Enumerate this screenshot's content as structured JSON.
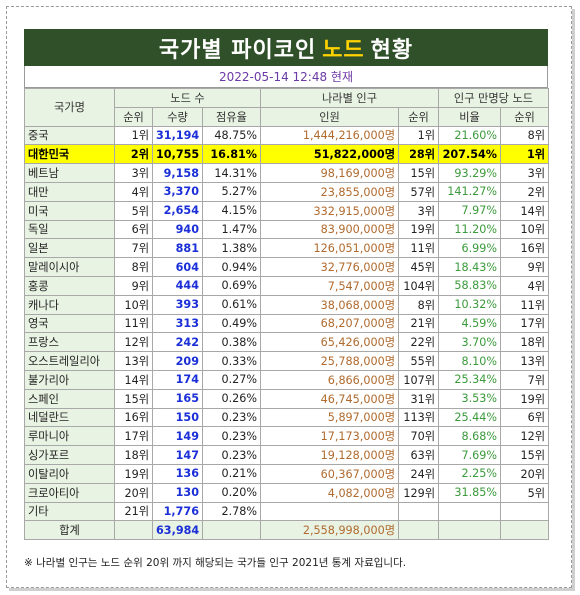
{
  "title": {
    "part1": "국가별 파이코인",
    "highlight": "노드",
    "part2": "현황"
  },
  "date_text": "2022-05-14 12:48 현재",
  "headers": {
    "country": "국가명",
    "nodes_group": "노드 수",
    "rank": "순위",
    "count": "수량",
    "share": "점유율",
    "pop_group": "나라별 인구",
    "population": "인원",
    "pop_rank": "순위",
    "per_group": "인구 만명당 노드",
    "ratio": "비율",
    "ratio_rank": "순위"
  },
  "rows": [
    {
      "country": "중국",
      "rank": "1위",
      "count": "31,194",
      "share": "48.75%",
      "population": "1,444,216,000명",
      "pop_rank": "1위",
      "ratio": "21.60%",
      "ratio_rank": "8위"
    },
    {
      "country": "대한민국",
      "rank": "2위",
      "count": "10,755",
      "share": "16.81%",
      "population": "51,822,000명",
      "pop_rank": "28위",
      "ratio": "207.54%",
      "ratio_rank": "1위",
      "highlight": true
    },
    {
      "country": "베트남",
      "rank": "3위",
      "count": "9,158",
      "share": "14.31%",
      "population": "98,169,000명",
      "pop_rank": "15위",
      "ratio": "93.29%",
      "ratio_rank": "3위"
    },
    {
      "country": "대만",
      "rank": "4위",
      "count": "3,370",
      "share": "5.27%",
      "population": "23,855,000명",
      "pop_rank": "57위",
      "ratio": "141.27%",
      "ratio_rank": "2위"
    },
    {
      "country": "미국",
      "rank": "5위",
      "count": "2,654",
      "share": "4.15%",
      "population": "332,915,000명",
      "pop_rank": "3위",
      "ratio": "7.97%",
      "ratio_rank": "14위"
    },
    {
      "country": "독일",
      "rank": "6위",
      "count": "940",
      "share": "1.47%",
      "population": "83,900,000명",
      "pop_rank": "19위",
      "ratio": "11.20%",
      "ratio_rank": "10위"
    },
    {
      "country": "일본",
      "rank": "7위",
      "count": "881",
      "share": "1.38%",
      "population": "126,051,000명",
      "pop_rank": "11위",
      "ratio": "6.99%",
      "ratio_rank": "16위"
    },
    {
      "country": "말레이시아",
      "rank": "8위",
      "count": "604",
      "share": "0.94%",
      "population": "32,776,000명",
      "pop_rank": "45위",
      "ratio": "18.43%",
      "ratio_rank": "9위"
    },
    {
      "country": "홍콩",
      "rank": "9위",
      "count": "444",
      "share": "0.69%",
      "population": "7,547,000명",
      "pop_rank": "104위",
      "ratio": "58.83%",
      "ratio_rank": "4위"
    },
    {
      "country": "캐나다",
      "rank": "10위",
      "count": "393",
      "share": "0.61%",
      "population": "38,068,000명",
      "pop_rank": "8위",
      "ratio": "10.32%",
      "ratio_rank": "11위"
    },
    {
      "country": "영국",
      "rank": "11위",
      "count": "313",
      "share": "0.49%",
      "population": "68,207,000명",
      "pop_rank": "21위",
      "ratio": "4.59%",
      "ratio_rank": "17위"
    },
    {
      "country": "프랑스",
      "rank": "12위",
      "count": "242",
      "share": "0.38%",
      "population": "65,426,000명",
      "pop_rank": "22위",
      "ratio": "3.70%",
      "ratio_rank": "18위"
    },
    {
      "country": "오스트레일리아",
      "rank": "13위",
      "count": "209",
      "share": "0.33%",
      "population": "25,788,000명",
      "pop_rank": "55위",
      "ratio": "8.10%",
      "ratio_rank": "13위"
    },
    {
      "country": "불가리아",
      "rank": "14위",
      "count": "174",
      "share": "0.27%",
      "population": "6,866,000명",
      "pop_rank": "107위",
      "ratio": "25.34%",
      "ratio_rank": "7위"
    },
    {
      "country": "스페인",
      "rank": "15위",
      "count": "165",
      "share": "0.26%",
      "population": "46,745,000명",
      "pop_rank": "31위",
      "ratio": "3.53%",
      "ratio_rank": "19위"
    },
    {
      "country": "네덜란드",
      "rank": "16위",
      "count": "150",
      "share": "0.23%",
      "population": "5,897,000명",
      "pop_rank": "113위",
      "ratio": "25.44%",
      "ratio_rank": "6위"
    },
    {
      "country": "루마니아",
      "rank": "17위",
      "count": "149",
      "share": "0.23%",
      "population": "17,173,000명",
      "pop_rank": "70위",
      "ratio": "8.68%",
      "ratio_rank": "12위"
    },
    {
      "country": "싱가포르",
      "rank": "18위",
      "count": "147",
      "share": "0.23%",
      "population": "19,128,000명",
      "pop_rank": "63위",
      "ratio": "7.69%",
      "ratio_rank": "15위"
    },
    {
      "country": "이탈리아",
      "rank": "19위",
      "count": "136",
      "share": "0.21%",
      "population": "60,367,000명",
      "pop_rank": "24위",
      "ratio": "2.25%",
      "ratio_rank": "20위"
    },
    {
      "country": "크로아티아",
      "rank": "20위",
      "count": "130",
      "share": "0.20%",
      "population": "4,082,000명",
      "pop_rank": "129위",
      "ratio": "31.85%",
      "ratio_rank": "5위"
    },
    {
      "country": "기타",
      "rank": "21위",
      "count": "1,776",
      "share": "2.78%",
      "population": "",
      "pop_rank": "",
      "ratio": "",
      "ratio_rank": ""
    }
  ],
  "total": {
    "label": "합계",
    "count": "63,984",
    "population": "2,558,998,000명"
  },
  "footnote": "※ 나라별 인구는 노드 순위 20위 까지 해당되는 국가들 인구 2021년 통계 자료입니다.",
  "colors": {
    "title_bg": "#30502a",
    "title_highlight": "#ffd200",
    "header_bg": "#e9f3e3",
    "qty": "#1a2fd8",
    "pop": "#b06a2e",
    "ratio": "#3b9a3b",
    "highlight_row": "#ffff00"
  }
}
